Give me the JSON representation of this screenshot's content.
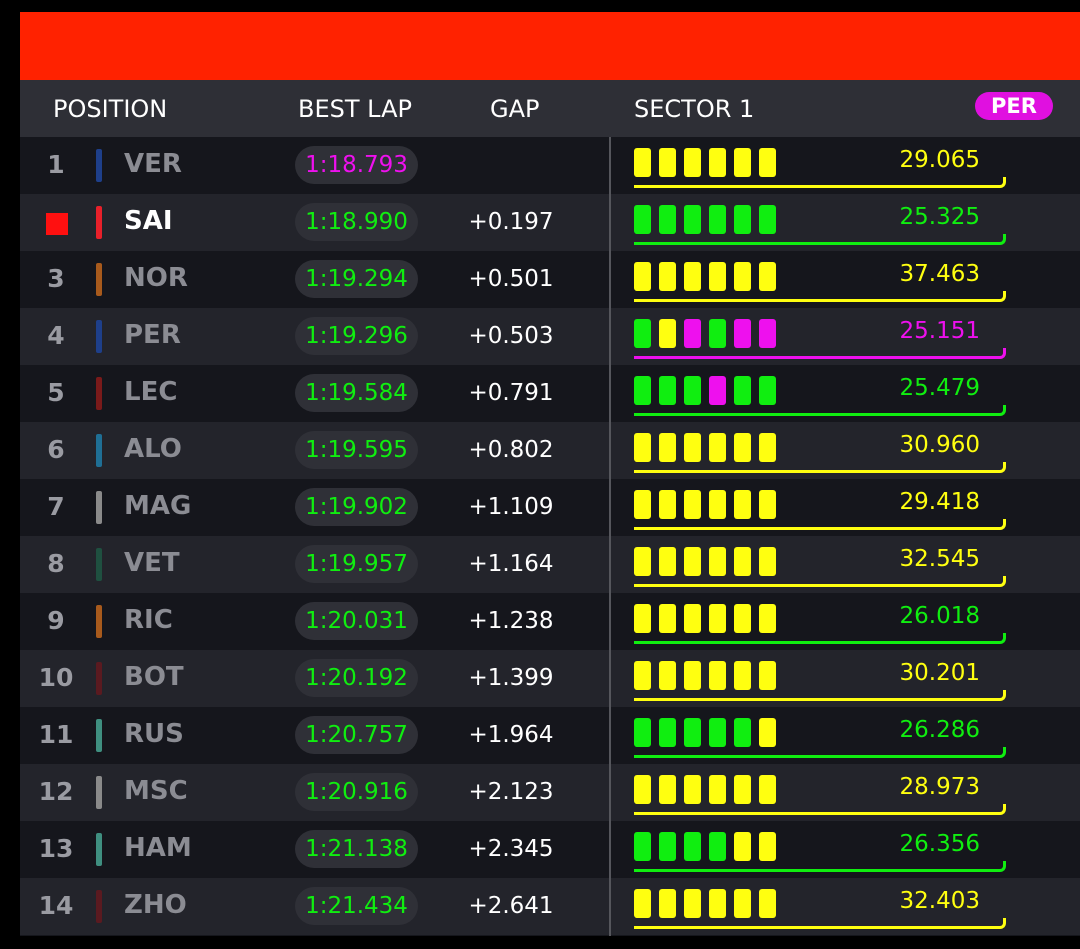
{
  "header": {
    "position": "POSITION",
    "best_lap": "BEST LAP",
    "gap": "GAP",
    "sector": "SECTOR 1",
    "selected_driver": "PER"
  },
  "colors": {
    "yellow": "#ffff10",
    "green": "#10ee10",
    "purple": "#ee10ee",
    "accent": "#ff2200"
  },
  "rows": [
    {
      "pos": "1",
      "code": "VER",
      "team": "#1e3f8a",
      "lap": "1:18.793",
      "lapc": "#ee10ee",
      "gap": "",
      "segs": "YYYYYY",
      "s1": "29.065",
      "s1c": "#ffff10"
    },
    {
      "pos": "",
      "code": "SAI",
      "team": "#e8202a",
      "lap": "1:18.990",
      "lapc": "#10ee10",
      "gap": "+0.197",
      "segs": "GGGGGG",
      "s1": "25.325",
      "s1c": "#10ee10",
      "me": true
    },
    {
      "pos": "3",
      "code": "NOR",
      "team": "#a85a1c",
      "lap": "1:19.294",
      "lapc": "#10ee10",
      "gap": "+0.501",
      "segs": "YYYYYY",
      "s1": "37.463",
      "s1c": "#ffff10"
    },
    {
      "pos": "4",
      "code": "PER",
      "team": "#1e3f8a",
      "lap": "1:19.296",
      "lapc": "#10ee10",
      "gap": "+0.503",
      "segs": "GYMGMM",
      "s1": "25.151",
      "s1c": "#ee10ee"
    },
    {
      "pos": "5",
      "code": "LEC",
      "team": "#7a1a1a",
      "lap": "1:19.584",
      "lapc": "#10ee10",
      "gap": "+0.791",
      "segs": "GGGMGG",
      "s1": "25.479",
      "s1c": "#10ee10"
    },
    {
      "pos": "6",
      "code": "ALO",
      "team": "#1f6f95",
      "lap": "1:19.595",
      "lapc": "#10ee10",
      "gap": "+0.802",
      "segs": "YYYYYY",
      "s1": "30.960",
      "s1c": "#ffff10"
    },
    {
      "pos": "7",
      "code": "MAG",
      "team": "#8a8a8a",
      "lap": "1:19.902",
      "lapc": "#10ee10",
      "gap": "+1.109",
      "segs": "YYYYYY",
      "s1": "29.418",
      "s1c": "#ffff10"
    },
    {
      "pos": "8",
      "code": "VET",
      "team": "#1f5040",
      "lap": "1:19.957",
      "lapc": "#10ee10",
      "gap": "+1.164",
      "segs": "YYYYYY",
      "s1": "32.545",
      "s1c": "#ffff10"
    },
    {
      "pos": "9",
      "code": "RIC",
      "team": "#a85a1c",
      "lap": "1:20.031",
      "lapc": "#10ee10",
      "gap": "+1.238",
      "segs": "YYYYYY",
      "s1": "26.018",
      "s1c": "#10ee10"
    },
    {
      "pos": "10",
      "code": "BOT",
      "team": "#5a1a20",
      "lap": "1:20.192",
      "lapc": "#10ee10",
      "gap": "+1.399",
      "segs": "YYYYYY",
      "s1": "30.201",
      "s1c": "#ffff10"
    },
    {
      "pos": "11",
      "code": "RUS",
      "team": "#3f8f80",
      "lap": "1:20.757",
      "lapc": "#10ee10",
      "gap": "+1.964",
      "segs": "GGGGGY",
      "s1": "26.286",
      "s1c": "#10ee10"
    },
    {
      "pos": "12",
      "code": "MSC",
      "team": "#8a8a8a",
      "lap": "1:20.916",
      "lapc": "#10ee10",
      "gap": "+2.123",
      "segs": "YYYYYY",
      "s1": "28.973",
      "s1c": "#ffff10"
    },
    {
      "pos": "13",
      "code": "HAM",
      "team": "#3f8f80",
      "lap": "1:21.138",
      "lapc": "#10ee10",
      "gap": "+2.345",
      "segs": "GGGGYY",
      "s1": "26.356",
      "s1c": "#10ee10"
    },
    {
      "pos": "14",
      "code": "ZHO",
      "team": "#5a1a20",
      "lap": "1:21.434",
      "lapc": "#10ee10",
      "gap": "+2.641",
      "segs": "YYYYYY",
      "s1": "32.403",
      "s1c": "#ffff10"
    }
  ]
}
